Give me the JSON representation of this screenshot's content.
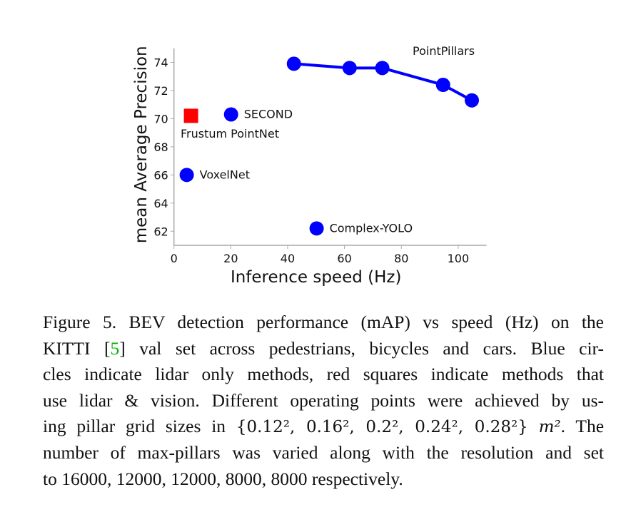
{
  "chart_data": {
    "type": "scatter",
    "xlabel": "Inference speed (Hz)",
    "ylabel": "mean Average Precision",
    "xlim": [
      0,
      110
    ],
    "ylim": [
      61,
      75
    ],
    "xticks": [
      0,
      20,
      40,
      60,
      80,
      100
    ],
    "yticks": [
      62,
      64,
      66,
      68,
      70,
      72,
      74
    ],
    "grid": false,
    "series": [
      {
        "name": "PointPillars",
        "marker": "circle",
        "color": "#0000ff",
        "line": true,
        "points": [
          {
            "x": 42.2,
            "y": 73.9
          },
          {
            "x": 61.8,
            "y": 73.6
          },
          {
            "x": 73.3,
            "y": 73.6
          },
          {
            "x": 94.7,
            "y": 72.4
          },
          {
            "x": 104.8,
            "y": 71.3
          }
        ]
      },
      {
        "name": "SECOND",
        "marker": "circle",
        "color": "#0000ff",
        "points": [
          {
            "x": 20.1,
            "y": 70.3
          }
        ]
      },
      {
        "name": "Frustum PointNet",
        "marker": "square",
        "color": "#ff0000",
        "points": [
          {
            "x": 6.0,
            "y": 70.2
          }
        ]
      },
      {
        "name": "VoxelNet",
        "marker": "circle",
        "color": "#0000ff",
        "points": [
          {
            "x": 4.5,
            "y": 66.0
          }
        ]
      },
      {
        "name": "Complex-YOLO",
        "marker": "circle",
        "color": "#0000ff",
        "points": [
          {
            "x": 50.2,
            "y": 62.2
          }
        ]
      }
    ]
  },
  "caption": {
    "line1": "Figure 5. BEV detection performance (mAP) vs speed (Hz) on the",
    "line2_a": "KITTI [",
    "line2_ref": "5",
    "line2_b": "] val set across pedestrians, bicycles and cars. Blue cir-",
    "line3": "cles indicate lidar only methods, red squares indicate methods that",
    "line4": "use lidar & vision. Different operating points were achieved by us-",
    "line5_a": "ing pillar grid sizes in ",
    "line5_math": "{0.12², 0.16², 0.2², 0.24², 0.28²}",
    "line5_unit": "m²",
    "line5_b": ". The",
    "line6": "number of max-pillars was varied along with the resolution and set",
    "line7": "to 16000, 12000, 12000, 8000, 8000 respectively.",
    "ref_color": "#00b000"
  }
}
